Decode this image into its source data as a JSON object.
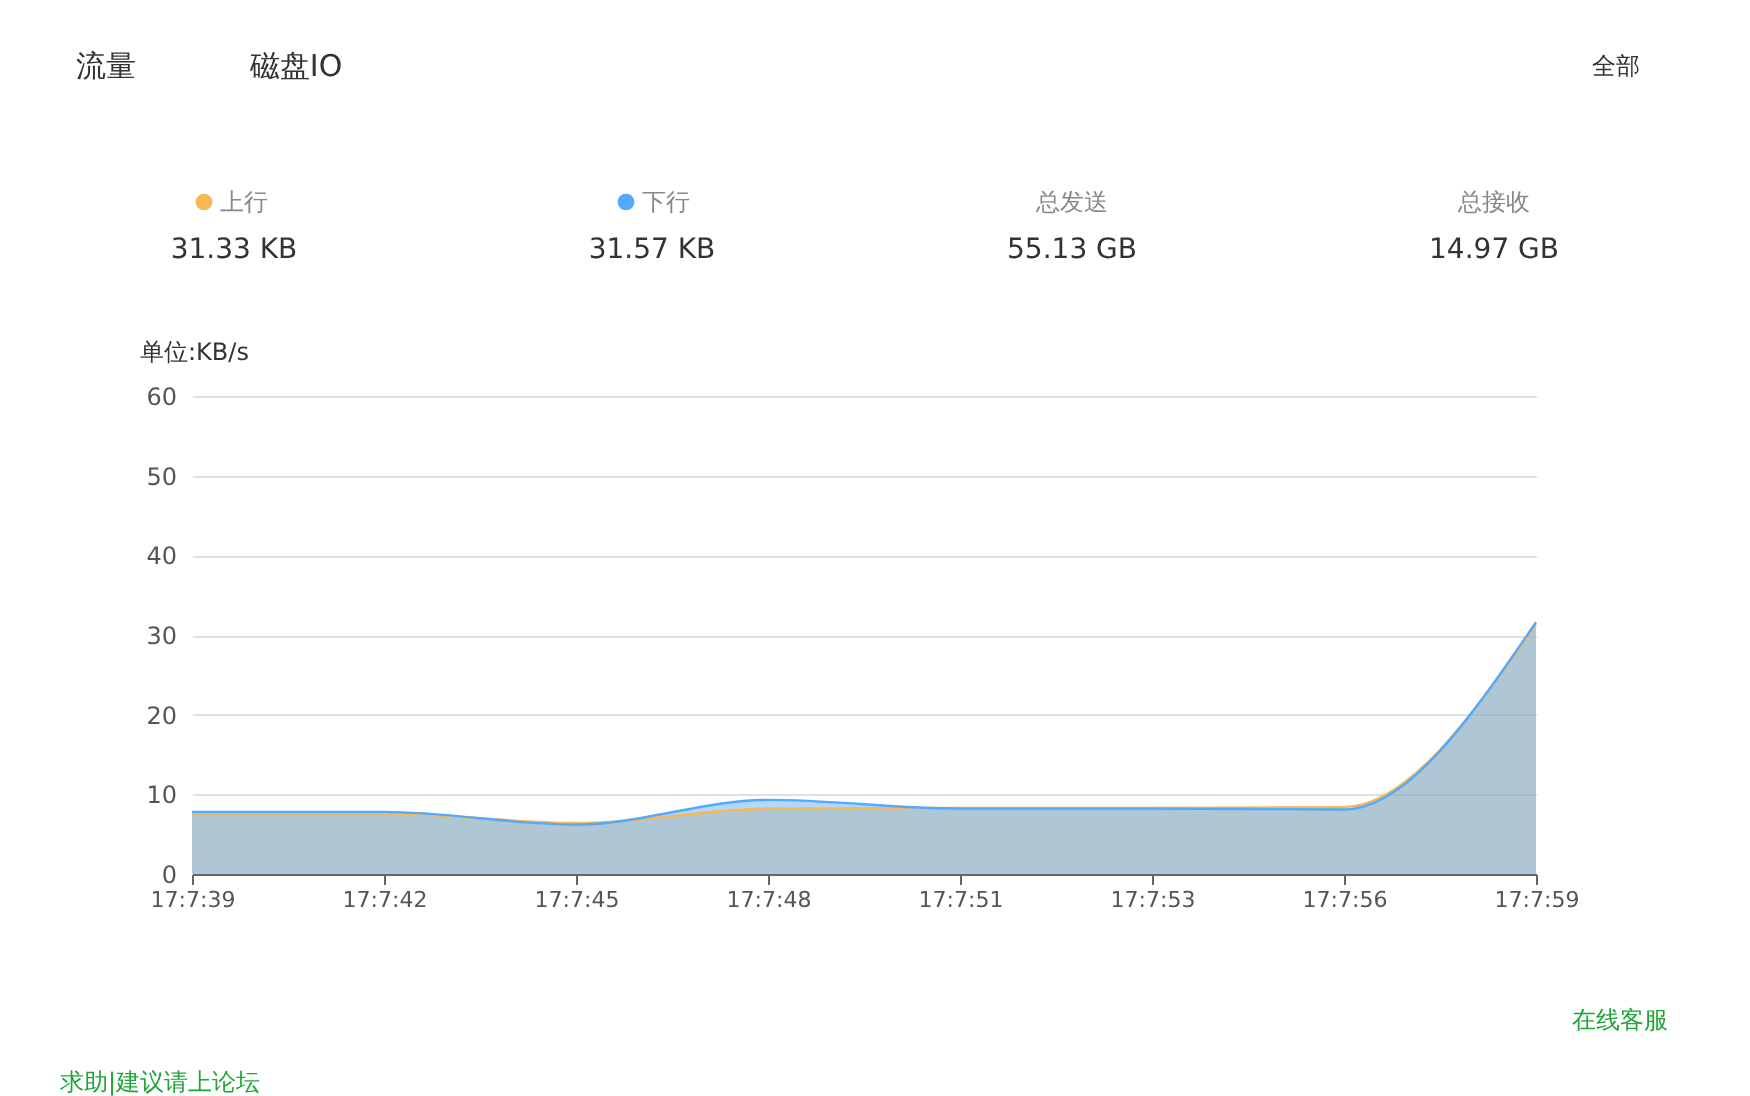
{
  "chart_data": {
    "type": "area",
    "ylabel": "单位:KB/s",
    "categories": [
      "17:7:39",
      "17:7:42",
      "17:7:45",
      "17:7:48",
      "17:7:51",
      "17:7:53",
      "17:7:56",
      "17:7:59"
    ],
    "series": [
      {
        "name": "上行",
        "color": "#f7b851",
        "values": [
          7.6,
          7.6,
          6.4,
          8.2,
          8.3,
          8.3,
          8.4,
          31.3
        ]
      },
      {
        "name": "下行",
        "color": "#52a9ff",
        "values": [
          7.8,
          7.8,
          6.2,
          9.3,
          8.2,
          8.2,
          8.1,
          31.6
        ]
      }
    ],
    "ylim": [
      0,
      60
    ],
    "yticks": [
      0,
      10,
      20,
      30,
      40,
      50,
      60
    ],
    "grid": "y",
    "legend": "top",
    "annotations": [
      "流量",
      "磁盘IO",
      "全部",
      "31.33 KB",
      "31.57 KB",
      "总发送",
      "55.13 GB",
      "总接收",
      "14.97 GB",
      "在线客服",
      "求助|建议请上论坛"
    ]
  }
}
